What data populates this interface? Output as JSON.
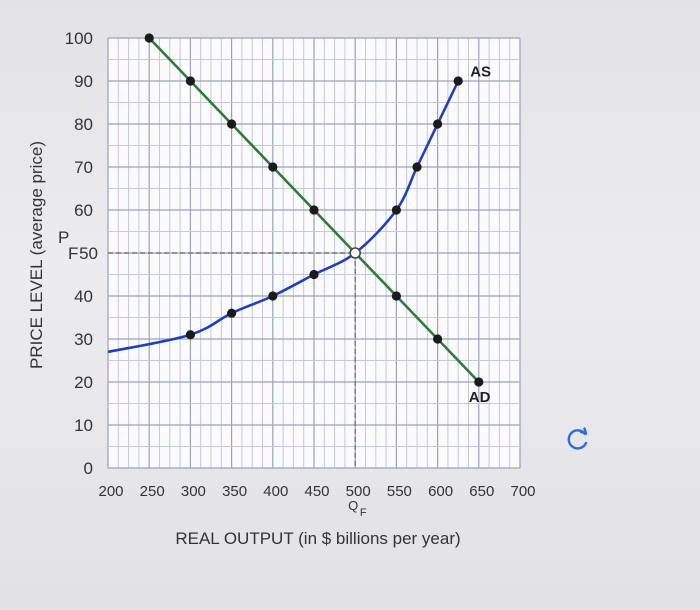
{
  "chart_data": {
    "type": "line",
    "xlabel": "REAL OUTPUT (in $ billions per year)",
    "ylabel": "PRICE LEVEL (average price)",
    "xlim": [
      200,
      700
    ],
    "ylim": [
      0,
      100
    ],
    "x_ticks": [
      "200",
      "250",
      "300",
      "350",
      "400",
      "450",
      "500",
      "550",
      "600",
      "650",
      "700"
    ],
    "y_ticks": [
      "0",
      "10",
      "20",
      "30",
      "40",
      "50",
      "60",
      "70",
      "80",
      "90",
      "100"
    ],
    "grid": true,
    "series": [
      {
        "name": "AD",
        "color": "#2e7d32",
        "points": [
          [
            250,
            100
          ],
          [
            300,
            90
          ],
          [
            350,
            80
          ],
          [
            400,
            70
          ],
          [
            450,
            60
          ],
          [
            500,
            50
          ],
          [
            550,
            40
          ],
          [
            600,
            30
          ],
          [
            650,
            20
          ]
        ]
      },
      {
        "name": "AS",
        "color": "#1f3fbf",
        "points": [
          [
            200,
            27
          ],
          [
            300,
            31
          ],
          [
            350,
            36
          ],
          [
            400,
            40
          ],
          [
            450,
            45
          ],
          [
            500,
            50
          ],
          [
            550,
            60
          ],
          [
            575,
            70
          ],
          [
            600,
            80
          ],
          [
            625,
            90
          ]
        ]
      }
    ],
    "equilibrium": {
      "x": 500,
      "y": 50,
      "price_label": "P",
      "price_subscript": "F",
      "output_label": "Q",
      "output_subscript": "F"
    }
  },
  "icons": {
    "refresh": "refresh-icon"
  }
}
